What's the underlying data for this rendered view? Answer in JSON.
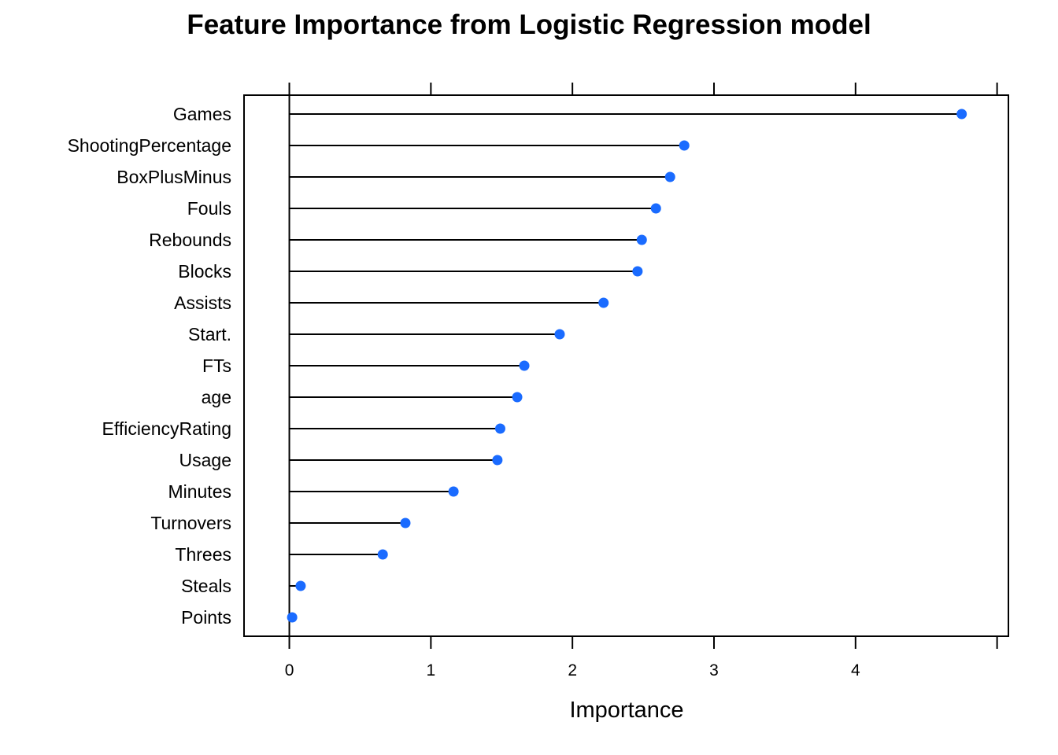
{
  "chart_data": {
    "type": "dot",
    "title": "Feature Importance from Logistic Regression model",
    "xlabel": "Importance",
    "ylabel": "",
    "xlim": [
      -0.32,
      5.08
    ],
    "xticks": [
      0,
      1,
      2,
      3,
      4,
      5
    ],
    "xtick_labels": [
      "0",
      "1",
      "2",
      "3",
      "4",
      ""
    ],
    "grid": false,
    "legend": "none",
    "marker_color": "#1A6BFF",
    "line_color": "#000000",
    "categories": [
      "Games",
      "ShootingPercentage",
      "BoxPlusMinus",
      "Fouls",
      "Rebounds",
      "Blocks",
      "Assists",
      "Start.",
      "FTs",
      "age",
      "EfficiencyRating",
      "Usage",
      "Minutes",
      "Turnovers",
      "Threes",
      "Steals",
      "Points"
    ],
    "values": [
      4.75,
      2.79,
      2.69,
      2.59,
      2.49,
      2.46,
      2.22,
      1.91,
      1.66,
      1.61,
      1.49,
      1.47,
      1.16,
      0.82,
      0.66,
      0.08,
      0.02
    ]
  }
}
